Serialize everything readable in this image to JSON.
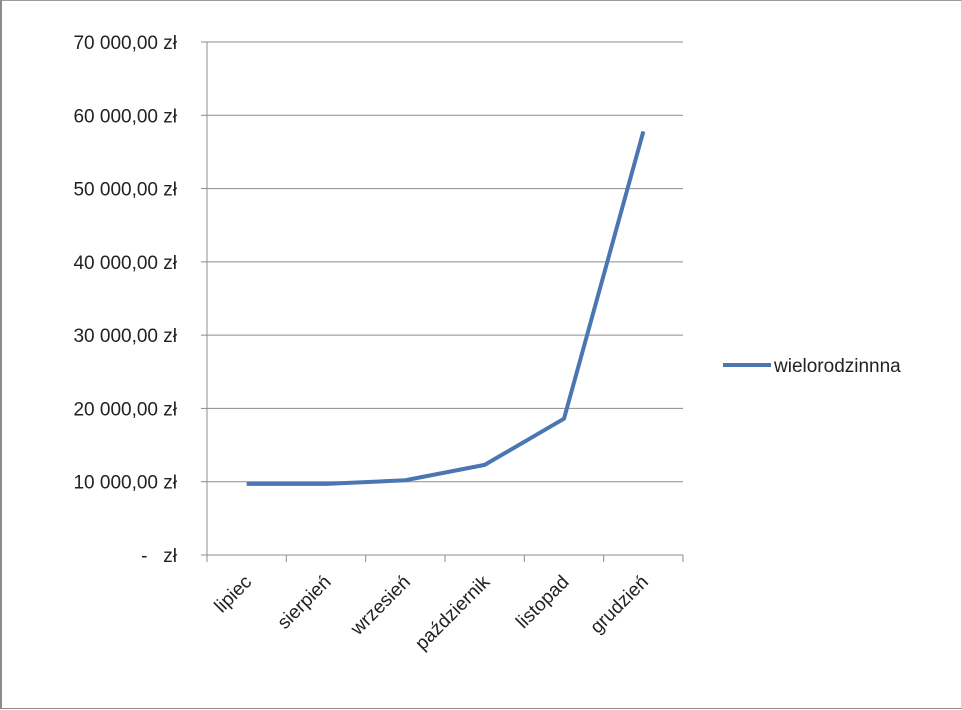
{
  "chart_data": {
    "type": "line",
    "title": "",
    "xlabel": "",
    "ylabel": "",
    "categories": [
      "lipiec",
      "sierpień",
      "wrzesień",
      "październik",
      "listopad",
      "grudzień"
    ],
    "series": [
      {
        "name": "wielorodzinnna",
        "values": [
          9700,
          9700,
          10200,
          12300,
          18600,
          57800
        ],
        "color": "#4a76b2"
      }
    ],
    "ylim": [
      0,
      70000
    ],
    "y_ticks": [
      0,
      10000,
      20000,
      30000,
      40000,
      50000,
      60000,
      70000
    ],
    "y_tick_labels": [
      "-   zł",
      "10 000,00 zł",
      "20 000,00 zł",
      "30 000,00 zł",
      "40 000,00 zł",
      "50 000,00 zł",
      "60 000,00 zł",
      "70 000,00 zł"
    ],
    "grid": true,
    "legend_position": "right",
    "colors": {
      "line": "#4a76b2",
      "grid": "#8c8c8c",
      "axis": "#8c8c8c",
      "text": "#222222"
    }
  }
}
